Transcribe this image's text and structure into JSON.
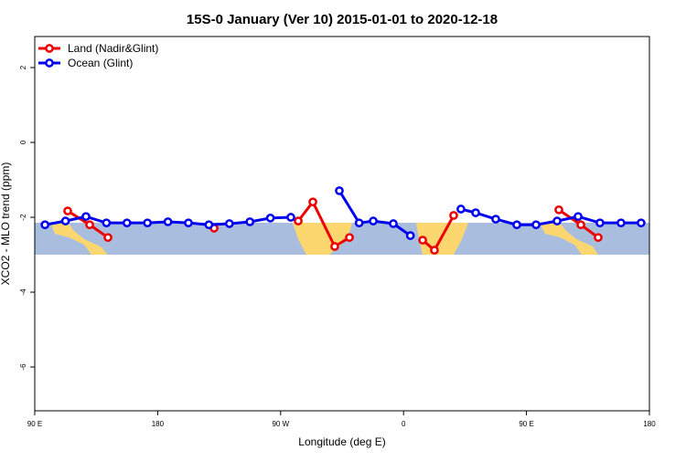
{
  "chart_data": {
    "type": "line",
    "title": "15S-0 January (Ver 10)   2015-01-01 to 2020-12-18",
    "xlabel": "Longitude (deg E)",
    "ylabel": "XCO2 - MLO trend (ppm)",
    "xlim": [
      90,
      540
    ],
    "ylim": [
      -7.17,
      2.83
    ],
    "xticks": [
      {
        "value": 90,
        "label": "90 E"
      },
      180,
      {
        "value": 270,
        "label": "90 W"
      },
      {
        "value": 360,
        "label": "0"
      },
      {
        "value": 450,
        "label": "90 E"
      },
      {
        "value": 540,
        "label": "180"
      }
    ],
    "yticks": [
      2,
      0,
      -2,
      -4,
      -6
    ],
    "legend": "top-left",
    "series": [
      {
        "name": "Land (Nadir&Glint)",
        "color": "#ee0000",
        "x": [
          114.1,
          130.2,
          143.6,
          null,
          221.3,
          null,
          282.9,
          293.6,
          309.6,
          320.4,
          null,
          374,
          382.6,
          396.7,
          null,
          473.7,
          489.8,
          502.5
        ],
        "values": [
          -1.83,
          -2.2,
          -2.54,
          null,
          -2.29,
          null,
          -2.1,
          -1.59,
          -2.78,
          -2.54,
          null,
          -2.61,
          -2.88,
          -1.95,
          null,
          -1.8,
          -2.2,
          -2.54
        ]
      },
      {
        "name": "Ocean (Glint)",
        "color": "#0000ee",
        "x": [
          97.5,
          112.5,
          127.5,
          142.5,
          157.5,
          172.5,
          187.5,
          202.5,
          217.5,
          232.5,
          247.5,
          262.5,
          277.5,
          null,
          313,
          327.5,
          337.8,
          352.5,
          365,
          null,
          402,
          412.8,
          427.5,
          442.9,
          457,
          472.4,
          487.8,
          503.8,
          519.2,
          533.9
        ],
        "values": [
          -2.2,
          -2.1,
          -1.98,
          -2.15,
          -2.15,
          -2.15,
          -2.12,
          -2.15,
          -2.2,
          -2.17,
          -2.12,
          -2.02,
          -2.0,
          null,
          -1.29,
          -2.15,
          -2.1,
          -2.17,
          -2.49,
          null,
          -1.78,
          -1.88,
          -2.05,
          -2.2,
          -2.2,
          -2.1,
          -1.98,
          -2.15,
          -2.15,
          -2.15
        ]
      }
    ]
  }
}
